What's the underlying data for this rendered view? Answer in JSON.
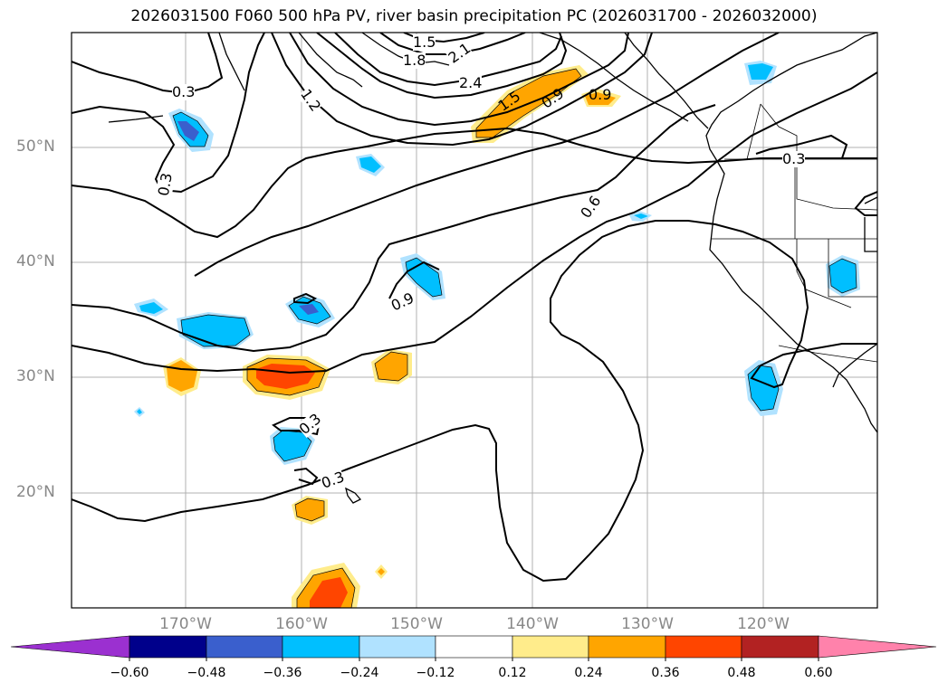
{
  "title": "2026031500 F060 500 hPa PV, river basin precipitation PC (2026031700 - 2026032000)",
  "axes": {
    "lat_labels": [
      "50°N",
      "40°N",
      "30°N",
      "20°N"
    ],
    "lon_labels": [
      "170°W",
      "160°W",
      "150°W",
      "140°W",
      "130°W",
      "120°W"
    ]
  },
  "contour_labels": [
    "1.5",
    "1.8",
    "2.1",
    "2.4",
    "1.2",
    "0.3",
    "0.3",
    "1.5",
    "0.9",
    "0.6",
    "0.3",
    "0.9",
    "0.3",
    "0.3",
    "0.9"
  ],
  "colorbar": {
    "ticks": [
      "−0.60",
      "−0.48",
      "−0.36",
      "−0.24",
      "−0.12",
      "0.12",
      "0.24",
      "0.36",
      "0.48",
      "0.60"
    ],
    "colors": [
      "#9b30d0",
      "#00008b",
      "#3a5fcd",
      "#00bfff",
      "#b0e2ff",
      "#ffffff",
      "#ffec8b",
      "#ffa500",
      "#ff4500",
      "#b22222",
      "#ff82ab"
    ]
  },
  "precip_colors": {
    "neg1": "#b0e2ff",
    "neg2": "#00bfff",
    "neg3": "#3a5fcd",
    "neg4": "#00008b",
    "pos1": "#ffec8b",
    "pos2": "#ffa500",
    "pos3": "#ff4500"
  }
}
